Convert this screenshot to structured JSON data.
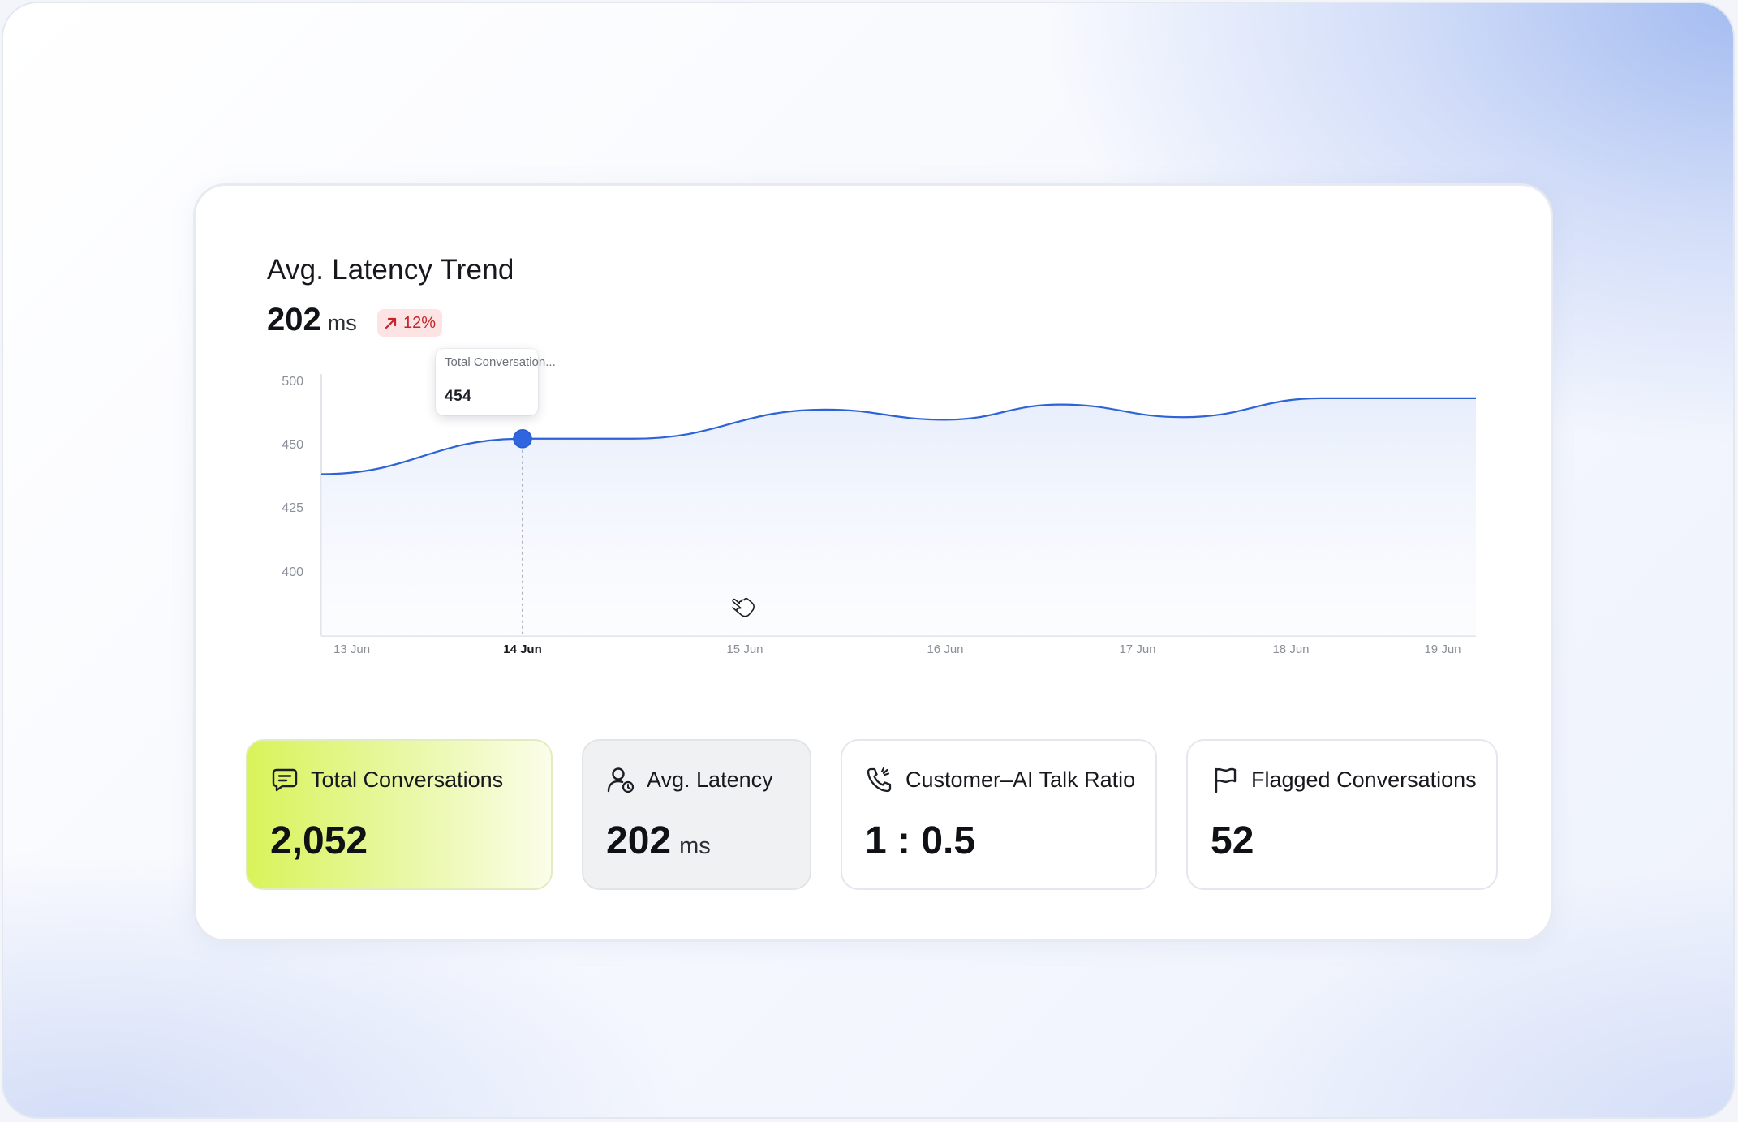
{
  "chart_panel": {
    "title": "Avg. Latency Trend",
    "headline_value": "202",
    "headline_unit": "ms",
    "trend_change": "12%",
    "trend_direction": "up",
    "trend_color": "#c4242a"
  },
  "tooltip": {
    "label": "Total Conversation...",
    "value": "454"
  },
  "chart_data": {
    "type": "area",
    "title": "Avg. Latency Trend",
    "x": [
      "13 Jun",
      "14 Jun",
      "15 Jun",
      "16 Jun",
      "17 Jun",
      "18 Jun",
      "19 Jun"
    ],
    "x_highlighted": "14 Jun",
    "y_ticks": [
      "500",
      "450",
      "425",
      "400"
    ],
    "series": [
      {
        "values": [
          {
            "x": "13 Jun",
            "y": 438
          },
          {
            "x": "14 Jun",
            "y": 454
          },
          {
            "x": "14.5 Jun",
            "y": 454
          },
          {
            "x": "15.4 Jun",
            "y": 477
          },
          {
            "x": "16 Jun",
            "y": 469
          },
          {
            "x": "16.6 Jun",
            "y": 481
          },
          {
            "x": "17.3 Jun",
            "y": 471
          },
          {
            "x": "18.2 Jun",
            "y": 486
          },
          {
            "x": "19 Jun",
            "y": 486
          }
        ],
        "color": "#2e63d8"
      }
    ],
    "highlight_point": {
      "x": "14 Jun",
      "y": 454
    },
    "grid": false,
    "legend": "none"
  },
  "stats": [
    {
      "label": "Total Conversations",
      "value": "2,052",
      "unit": "",
      "icon": "chat-message-icon"
    },
    {
      "label": "Avg. Latency",
      "value": "202",
      "unit": "ms",
      "icon": "user-clock-icon"
    },
    {
      "label": "Customer–AI Talk Ratio",
      "value": "1 : 0.5",
      "unit": "",
      "icon": "phone-call-icon"
    },
    {
      "label": "Flagged Conversations",
      "value": "52",
      "unit": "",
      "icon": "flag-icon"
    }
  ],
  "colors": {
    "accent": "#2e63d8",
    "highlight_card": "#d9f35a",
    "negative": "#c4242a"
  }
}
